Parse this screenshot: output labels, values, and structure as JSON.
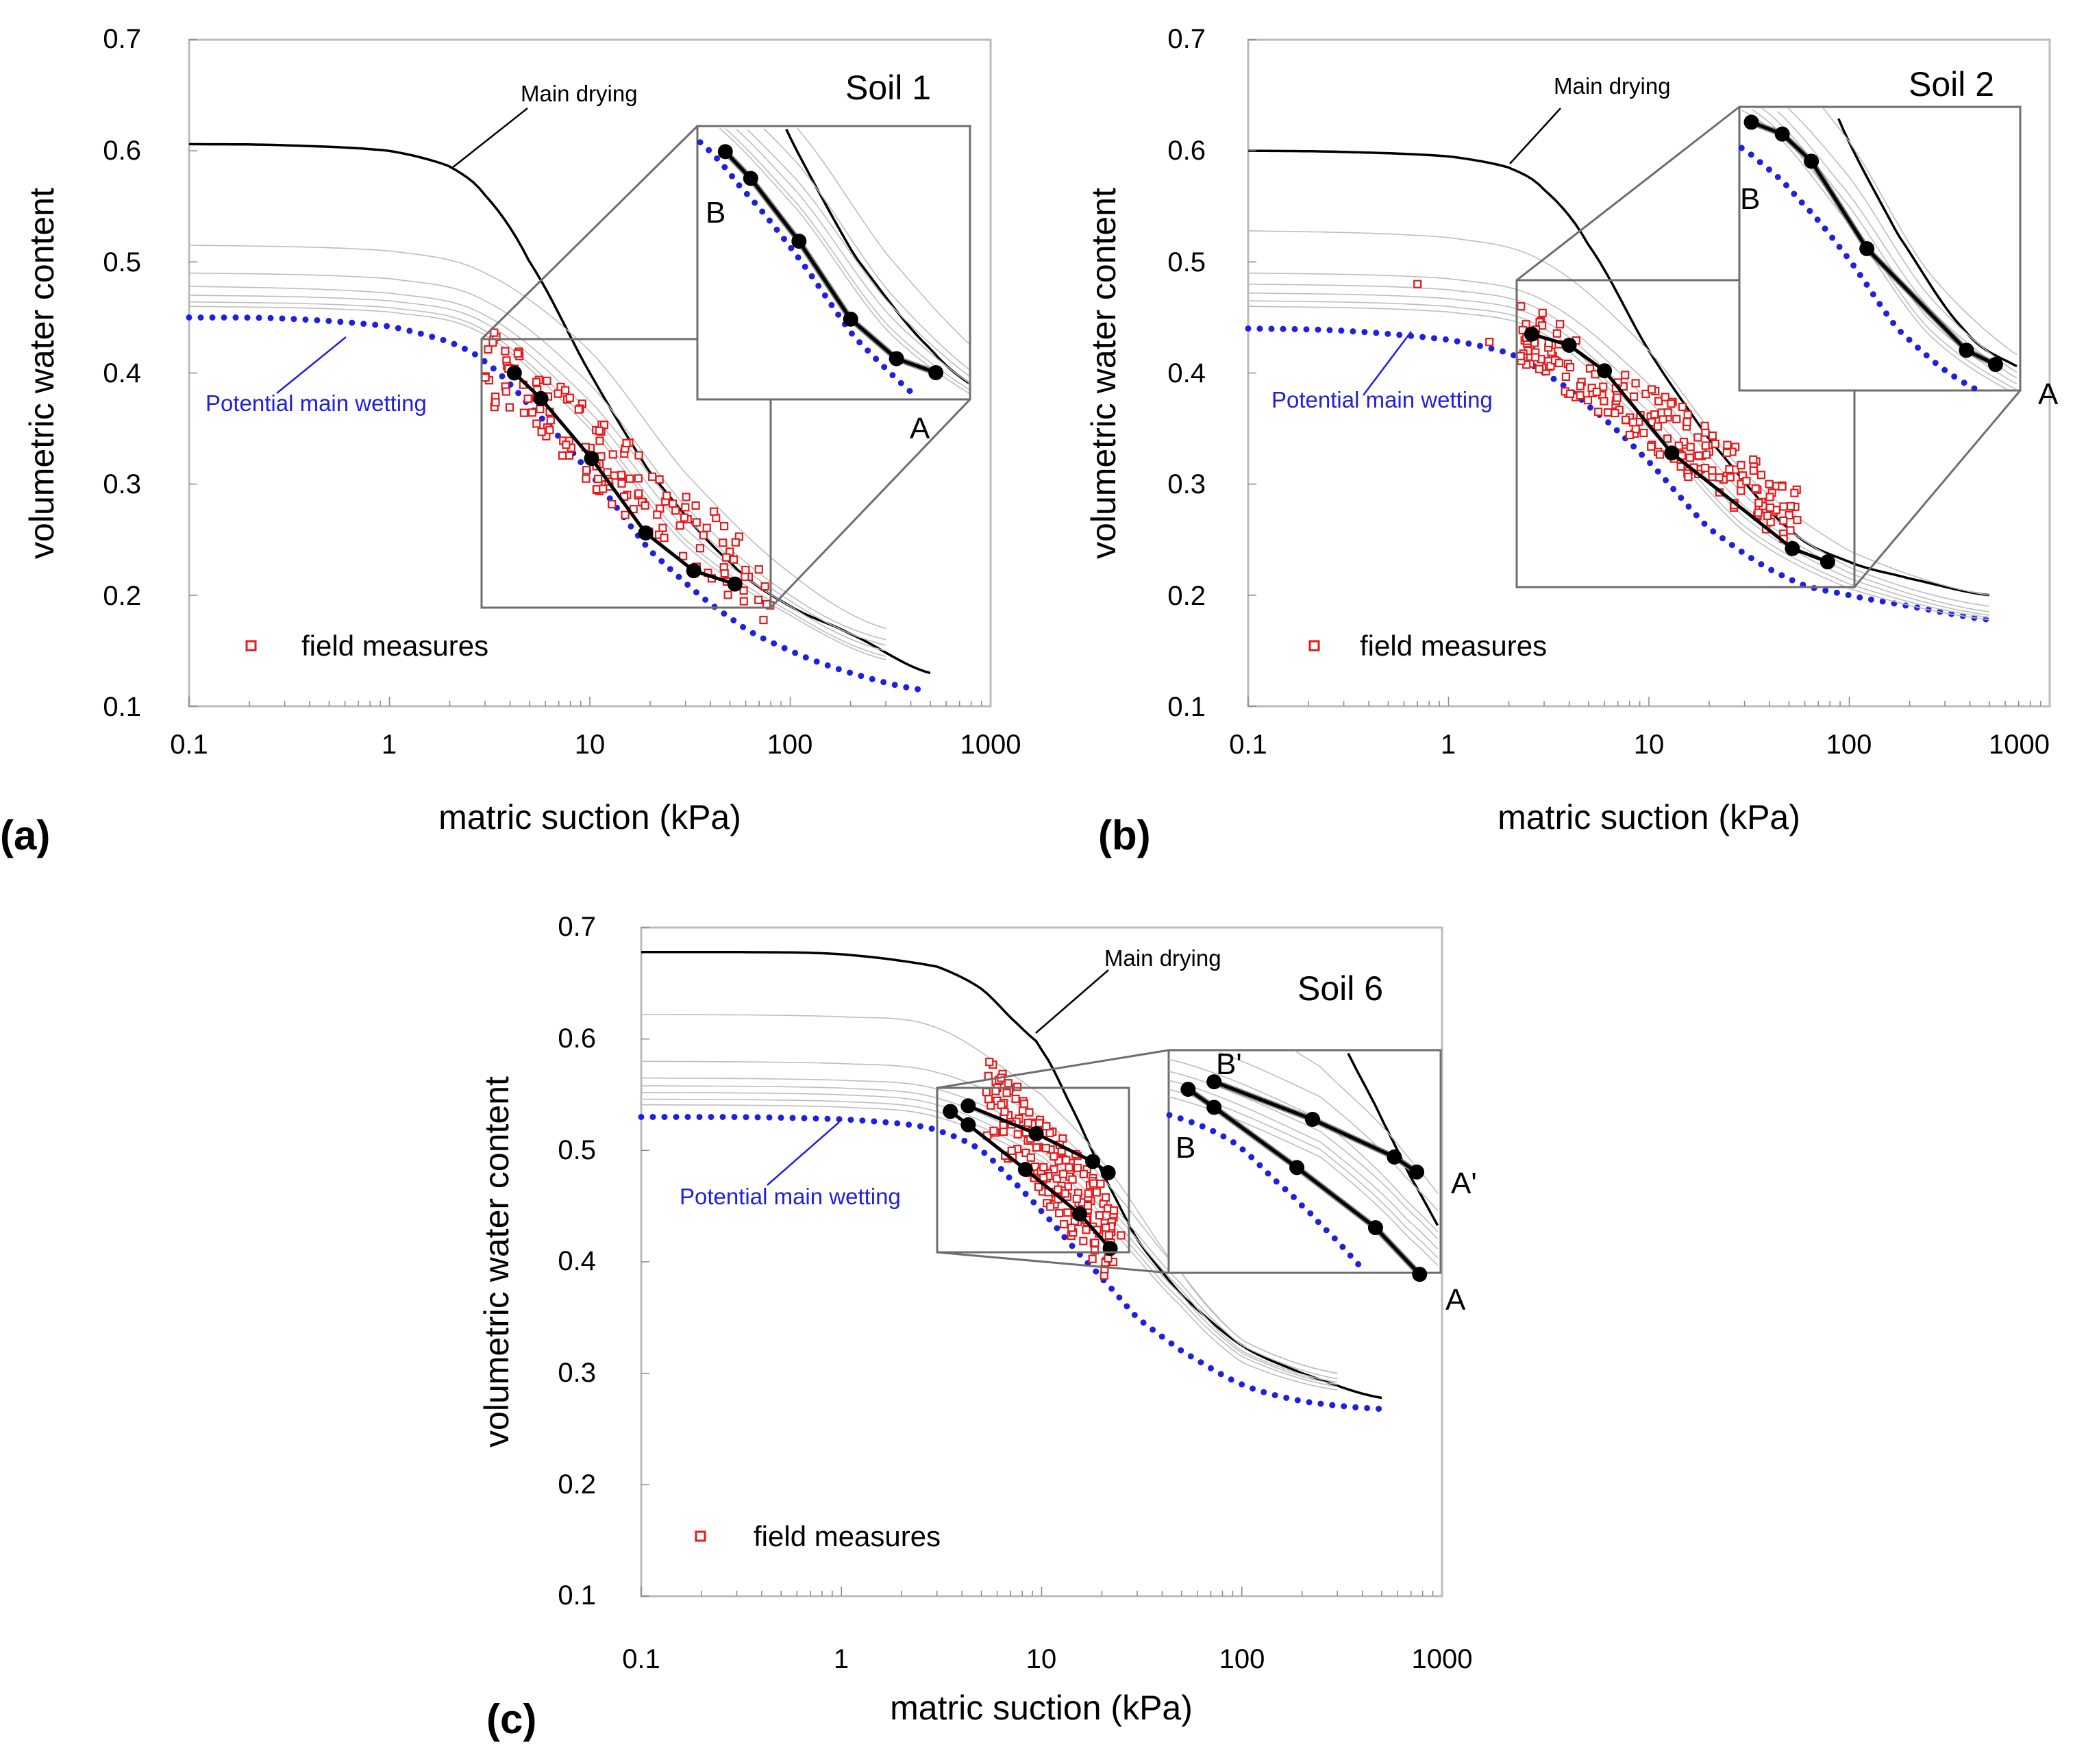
{
  "figure": {
    "panels": [
      {
        "id": "a",
        "label": "(a)",
        "title": "Soil 1"
      },
      {
        "id": "b",
        "label": "(b)",
        "title": "Soil 2"
      },
      {
        "id": "c",
        "label": "(c)",
        "title": "Soil 6"
      }
    ],
    "common": {
      "ylabel": "volumetric water content",
      "xlabel": "matric suction (kPa)",
      "legend": "field measures",
      "main_drying_label": "Main drying",
      "potential_wetting_label": "Potential main wetting",
      "xticks": [
        "0.1",
        "1",
        "10",
        "100",
        "1000"
      ],
      "yticks": [
        "0.1",
        "0.2",
        "0.3",
        "0.4",
        "0.5",
        "0.6",
        "0.7"
      ]
    },
    "colors": {
      "axis": "#bbbbbb",
      "drying": "#000000",
      "wetting": "#1f1fe0",
      "scanning": "#bdbdbd",
      "field": "#e41a1c",
      "zoom": "#6e6e6e"
    }
  },
  "chart_data": [
    {
      "type": "scatter",
      "title": "Soil 1",
      "panel_label": "(a)",
      "xlabel": "matric suction (kPa)",
      "ylabel": "volumetric water content",
      "xscale": "log",
      "xlim": [
        0.1,
        1000
      ],
      "ylim": [
        0.1,
        0.7
      ],
      "legend": [
        "field measures"
      ],
      "legend_position": "bottom-left",
      "series": [
        {
          "name": "Main drying",
          "style": "solid",
          "x": [
            0.1,
            0.3,
            1,
            2,
            3,
            5,
            10,
            20,
            50,
            100,
            200,
            500
          ],
          "y": [
            0.606,
            0.605,
            0.6,
            0.586,
            0.56,
            0.5,
            0.4,
            0.31,
            0.23,
            0.19,
            0.165,
            0.13
          ]
        },
        {
          "name": "Potential main wetting",
          "style": "dotted",
          "x": [
            0.1,
            0.3,
            1,
            2,
            3,
            5,
            10,
            20,
            50,
            100,
            200,
            450
          ],
          "y": [
            0.45,
            0.449,
            0.442,
            0.428,
            0.41,
            0.37,
            0.31,
            0.24,
            0.18,
            0.15,
            0.13,
            0.115
          ]
        },
        {
          "name": "Scanning 1",
          "style": "thin",
          "x": [
            0.1,
            1,
            3,
            10,
            30,
            100,
            300
          ],
          "y": [
            0.515,
            0.51,
            0.49,
            0.42,
            0.31,
            0.22,
            0.17
          ]
        },
        {
          "name": "Scanning 2",
          "style": "thin",
          "x": [
            0.1,
            1,
            3,
            10,
            30,
            100,
            300
          ],
          "y": [
            0.49,
            0.485,
            0.465,
            0.39,
            0.28,
            0.2,
            0.16
          ]
        },
        {
          "name": "Scanning 3",
          "style": "thin",
          "x": [
            0.1,
            1,
            3,
            10,
            30,
            100,
            300
          ],
          "y": [
            0.478,
            0.472,
            0.452,
            0.375,
            0.27,
            0.195,
            0.155
          ]
        },
        {
          "name": "Scanning 4",
          "style": "thin",
          "x": [
            0.1,
            1,
            3,
            10,
            30,
            100,
            300
          ],
          "y": [
            0.47,
            0.465,
            0.445,
            0.365,
            0.26,
            0.19,
            0.15
          ]
        },
        {
          "name": "Scanning 5",
          "style": "thin",
          "x": [
            0.1,
            1,
            3,
            10,
            30,
            100,
            300
          ],
          "y": [
            0.464,
            0.459,
            0.438,
            0.355,
            0.25,
            0.185,
            0.145
          ]
        },
        {
          "name": "Scanning 6",
          "style": "thin",
          "x": [
            0.1,
            1,
            3,
            10,
            30,
            100,
            300
          ],
          "y": [
            0.46,
            0.455,
            0.434,
            0.35,
            0.245,
            0.182,
            0.142
          ]
        },
        {
          "name": "Path A-B",
          "style": "markers",
          "x": [
            4.2,
            5.7,
            10.2,
            19,
            33,
            53
          ],
          "y": [
            0.4,
            0.377,
            0.323,
            0.256,
            0.222,
            0.21
          ]
        },
        {
          "name": "field measures",
          "style": "field",
          "n": 150,
          "x_range": [
            3,
            80
          ],
          "y_center_fn": [
            0.41,
            0.2
          ],
          "spread": 0.035
        }
      ],
      "zoom_box": {
        "x": [
          3,
          80
        ],
        "y": [
          0.187,
          0.422
        ]
      },
      "endpoints": [
        {
          "label": "A",
          "x": 530,
          "y": 0.2
        },
        {
          "label": "B",
          "x": 3.9,
          "y": 0.4
        }
      ]
    },
    {
      "type": "scatter",
      "title": "Soil 2",
      "panel_label": "(b)",
      "xlabel": "matric suction (kPa)",
      "ylabel": "volumetric water content",
      "xscale": "log",
      "xlim": [
        0.1,
        1000
      ],
      "ylim": [
        0.1,
        0.7
      ],
      "legend": [
        "field measures"
      ],
      "legend_position": "bottom-left",
      "series": [
        {
          "name": "Main drying",
          "style": "solid",
          "x": [
            0.1,
            0.3,
            1,
            2,
            3,
            5,
            10,
            20,
            50,
            100,
            200,
            500
          ],
          "y": [
            0.6,
            0.599,
            0.595,
            0.585,
            0.565,
            0.515,
            0.42,
            0.34,
            0.26,
            0.23,
            0.215,
            0.2
          ]
        },
        {
          "name": "Potential main wetting",
          "style": "dotted",
          "x": [
            0.1,
            0.3,
            1,
            2,
            3,
            5,
            10,
            20,
            50,
            100,
            200,
            500
          ],
          "y": [
            0.44,
            0.438,
            0.43,
            0.418,
            0.4,
            0.37,
            0.32,
            0.26,
            0.215,
            0.2,
            0.19,
            0.178
          ]
        },
        {
          "name": "Scanning 1",
          "style": "thin",
          "x": [
            0.1,
            1,
            3,
            10,
            30,
            100,
            500
          ],
          "y": [
            0.528,
            0.522,
            0.5,
            0.42,
            0.31,
            0.24,
            0.2
          ]
        },
        {
          "name": "Scanning 2",
          "style": "thin",
          "x": [
            0.1,
            1,
            3,
            10,
            30,
            100,
            500
          ],
          "y": [
            0.49,
            0.485,
            0.465,
            0.39,
            0.29,
            0.225,
            0.19
          ]
        },
        {
          "name": "Scanning 3",
          "style": "thin",
          "x": [
            0.1,
            1,
            3,
            10,
            30,
            100,
            500
          ],
          "y": [
            0.48,
            0.475,
            0.455,
            0.375,
            0.28,
            0.22,
            0.185
          ]
        },
        {
          "name": "Scanning 4",
          "style": "thin",
          "x": [
            0.1,
            1,
            3,
            10,
            30,
            100,
            500
          ],
          "y": [
            0.472,
            0.467,
            0.447,
            0.365,
            0.27,
            0.215,
            0.182
          ]
        },
        {
          "name": "Scanning 5",
          "style": "thin",
          "x": [
            0.1,
            1,
            3,
            10,
            30,
            100,
            500
          ],
          "y": [
            0.465,
            0.46,
            0.44,
            0.355,
            0.262,
            0.21,
            0.18
          ]
        },
        {
          "name": "Scanning 6",
          "style": "thin",
          "x": [
            0.1,
            1,
            3,
            10,
            30,
            100,
            500
          ],
          "y": [
            0.46,
            0.455,
            0.435,
            0.35,
            0.257,
            0.206,
            0.178
          ]
        },
        {
          "name": "Path A-B",
          "style": "markers",
          "x": [
            2.6,
            4,
            6,
            13,
            52,
            78
          ],
          "y": [
            0.435,
            0.425,
            0.402,
            0.328,
            0.242,
            0.23
          ]
        },
        {
          "name": "field measures",
          "style": "field",
          "n": 200,
          "x_range": [
            2.2,
            55
          ],
          "y_center_fn": [
            0.44,
            0.27
          ],
          "spread": 0.03
        },
        {
          "name": "field outliers",
          "style": "field-list",
          "x": [
            0.7,
            1.6,
            2.3
          ],
          "y": [
            0.48,
            0.428,
            0.46
          ]
        }
      ],
      "zoom_box": {
        "x": [
          2.2,
          110
        ],
        "y": [
          0.208,
          0.448
        ]
      },
      "endpoints": [
        {
          "label": "A",
          "x": 840,
          "y": 0.193
        },
        {
          "label": "B",
          "x": 2.0,
          "y": 0.465
        }
      ]
    },
    {
      "type": "scatter",
      "title": "Soil 6",
      "panel_label": "(c)",
      "xlabel": "matric suction (kPa)",
      "ylabel": "volumetric water content",
      "xscale": "log",
      "xlim": [
        0.1,
        1000
      ],
      "ylim": [
        0.1,
        0.7
      ],
      "legend": [
        "field measures"
      ],
      "legend_position": "bottom-left",
      "series": [
        {
          "name": "Main drying",
          "style": "solid",
          "x": [
            0.1,
            0.3,
            1,
            3,
            5,
            8,
            10,
            15,
            20,
            30,
            50,
            100,
            200,
            500
          ],
          "y": [
            0.678,
            0.678,
            0.676,
            0.665,
            0.645,
            0.61,
            0.59,
            0.53,
            0.48,
            0.42,
            0.37,
            0.325,
            0.3,
            0.278
          ]
        },
        {
          "name": "Potential main wetting",
          "style": "dotted",
          "x": [
            0.1,
            0.3,
            1,
            2,
            3,
            5,
            8,
            10,
            15,
            20,
            30,
            50,
            100,
            200,
            500
          ],
          "y": [
            0.53,
            0.53,
            0.528,
            0.524,
            0.518,
            0.5,
            0.465,
            0.445,
            0.41,
            0.385,
            0.35,
            0.32,
            0.29,
            0.275,
            0.268
          ]
        },
        {
          "name": "Scanning 1",
          "style": "thin",
          "x": [
            0.1,
            1,
            3,
            10,
            20,
            50,
            100,
            300
          ],
          "y": [
            0.622,
            0.62,
            0.61,
            0.55,
            0.49,
            0.39,
            0.33,
            0.3
          ]
        },
        {
          "name": "Scanning 2",
          "style": "thin",
          "x": [
            0.1,
            1,
            3,
            10,
            20,
            50,
            100,
            300
          ],
          "y": [
            0.58,
            0.578,
            0.57,
            0.53,
            0.475,
            0.39,
            0.33,
            0.3
          ]
        },
        {
          "name": "Scanning 3",
          "style": "thin",
          "x": [
            0.1,
            1,
            3,
            10,
            20,
            50,
            100,
            300
          ],
          "y": [
            0.565,
            0.563,
            0.555,
            0.515,
            0.46,
            0.38,
            0.325,
            0.295
          ]
        },
        {
          "name": "Scanning 4",
          "style": "thin",
          "x": [
            0.1,
            1,
            3,
            10,
            20,
            50,
            100,
            300
          ],
          "y": [
            0.558,
            0.556,
            0.547,
            0.507,
            0.455,
            0.375,
            0.32,
            0.292
          ]
        },
        {
          "name": "Scanning 5",
          "style": "thin",
          "x": [
            0.1,
            1,
            3,
            10,
            20,
            50,
            100,
            300
          ],
          "y": [
            0.552,
            0.55,
            0.541,
            0.5,
            0.448,
            0.37,
            0.318,
            0.29
          ]
        },
        {
          "name": "Scanning 6",
          "style": "thin",
          "x": [
            0.1,
            1,
            3,
            10,
            20,
            50,
            100,
            300
          ],
          "y": [
            0.546,
            0.544,
            0.535,
            0.495,
            0.442,
            0.365,
            0.315,
            0.288
          ]
        },
        {
          "name": "Scanning 7",
          "style": "thin",
          "x": [
            0.1,
            1,
            3,
            10,
            20,
            50,
            100,
            300
          ],
          "y": [
            0.541,
            0.539,
            0.53,
            0.49,
            0.437,
            0.36,
            0.31,
            0.285
          ]
        },
        {
          "name": "Path A-B",
          "style": "markers",
          "x": [
            3.5,
            4.3,
            8.3,
            15.5,
            22
          ],
          "y": [
            0.535,
            0.523,
            0.483,
            0.443,
            0.412
          ]
        },
        {
          "name": "Path A'-B'",
          "style": "markers",
          "x": [
            4.3,
            9.4,
            18,
            21.5
          ],
          "y": [
            0.54,
            0.515,
            0.49,
            0.48
          ]
        },
        {
          "name": "field measures",
          "style": "field",
          "n": 170,
          "x_range": [
            5.3,
            25
          ],
          "y_center_fn": [
            0.55,
            0.41
          ],
          "spread": 0.04
        }
      ],
      "zoom_box": {
        "x": [
          3,
          26
        ],
        "y": [
          0.413,
          0.561
        ]
      },
      "endpoints": [
        {
          "label": "A",
          "x": 580,
          "y": 0.373
        },
        {
          "label": "B",
          "x": 65,
          "y": 0.497
        },
        {
          "label": "A'",
          "x": 720,
          "y": 0.457
        },
        {
          "label": "B'",
          "x": 96,
          "y": 0.576
        }
      ]
    }
  ]
}
